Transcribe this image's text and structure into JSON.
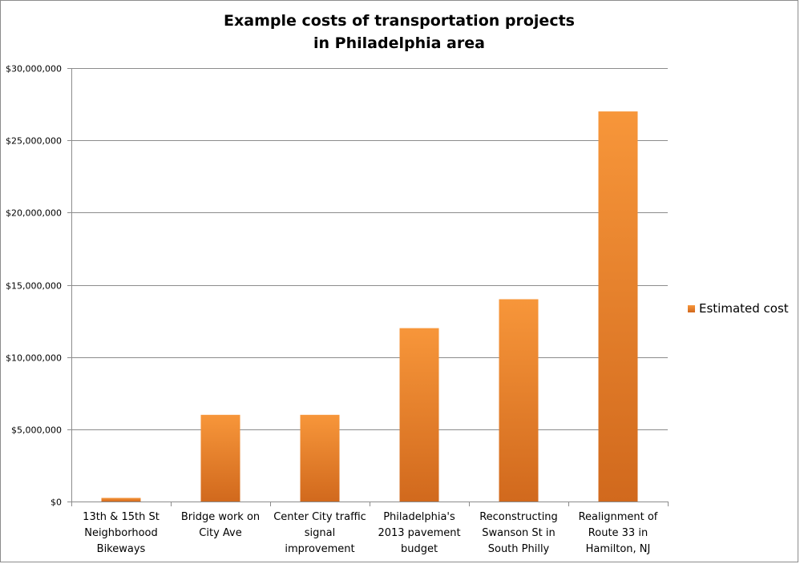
{
  "chart_data": {
    "type": "bar",
    "title": [
      "Example costs of transportation projects",
      "in Philadelphia area"
    ],
    "categories": [
      [
        "13th & 15th St",
        "Neighborhood",
        "Bikeways"
      ],
      [
        "Bridge work on",
        "City Ave"
      ],
      [
        "Center City traffic",
        "signal",
        "improvement"
      ],
      [
        "Philadelphia's",
        "2013 pavement",
        "budget"
      ],
      [
        "Reconstructing",
        "Swanson St in",
        "South Philly"
      ],
      [
        "Realignment of",
        "Route 33 in",
        "Hamilton, NJ"
      ]
    ],
    "series": [
      {
        "name": "Estimated cost",
        "values": [
          250000,
          6000000,
          6000000,
          12000000,
          14000000,
          27000000
        ]
      }
    ],
    "yticks": [
      "$0",
      "$5,000,000",
      "$10,000,000",
      "$15,000,000",
      "$20,000,000",
      "$25,000,000",
      "$30,000,000"
    ],
    "ylim": [
      0,
      30000000
    ],
    "grid": true,
    "legend_position": "right",
    "colors": {
      "bar_top": "#f7963a",
      "bar_bottom": "#d1691d",
      "grid": "#8c8c8c",
      "axis": "#8c8c8c"
    }
  }
}
